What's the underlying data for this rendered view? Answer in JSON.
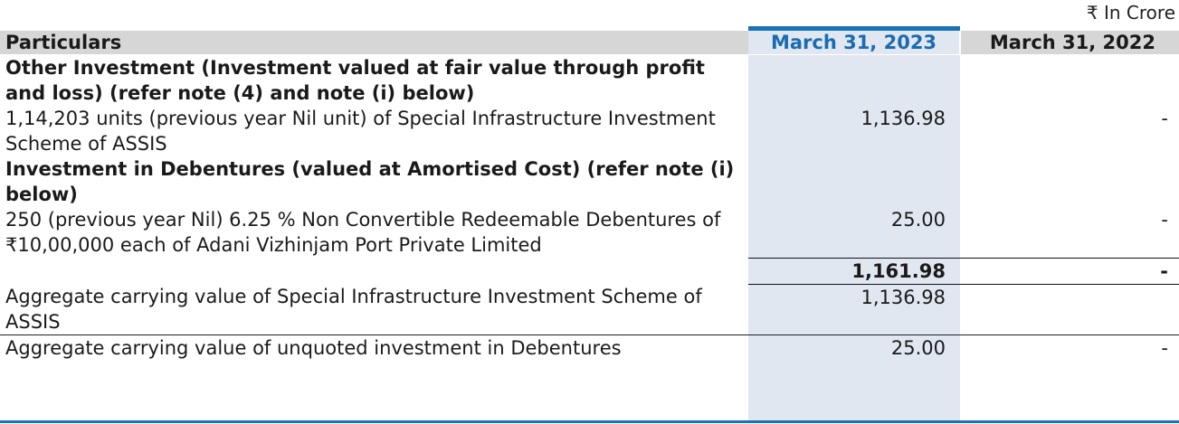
{
  "unit_note": "₹ In Crore",
  "header": {
    "particulars": "Particulars",
    "current_year": "March 31, 2023",
    "previous_year": "March 31, 2022"
  },
  "rows": [
    {
      "desc": "Other Investment  (Investment valued at fair value through profit and loss) (refer note (4) and  note (i) below)",
      "cur": "",
      "prev": "",
      "bold": true
    },
    {
      "desc": "1,14,203 units (previous year Nil unit) of Special Infrastructure Investment Scheme of ASSIS",
      "cur": "1,136.98",
      "prev": "-",
      "bold": false
    },
    {
      "desc": "Investment in Debentures (valued at Amortised Cost) (refer note (i) below)",
      "cur": "",
      "prev": "",
      "bold": true
    },
    {
      "desc": "250 (previous year Nil) 6.25 %  Non Convertible Redeemable Debentures of ₹10,00,000 each of Adani Vizhinjam Port Private Limited",
      "cur": "25.00",
      "prev": "-",
      "bold": false
    }
  ],
  "total": {
    "desc": "",
    "cur": "1,161.98",
    "prev": "-"
  },
  "aggregates": [
    {
      "desc": "Aggregate carrying value of Special Infrastructure Investment Scheme of ASSIS",
      "cur": "1,136.98",
      "prev": ""
    },
    {
      "desc": "Aggregate carrying value of unquoted investment in Debentures",
      "cur": "25.00",
      "prev": "-"
    }
  ],
  "colors": {
    "accent_blue": "#1a73b8",
    "current_column_shade": "#e1e7f1",
    "header_grey": "#d6d6d6"
  }
}
